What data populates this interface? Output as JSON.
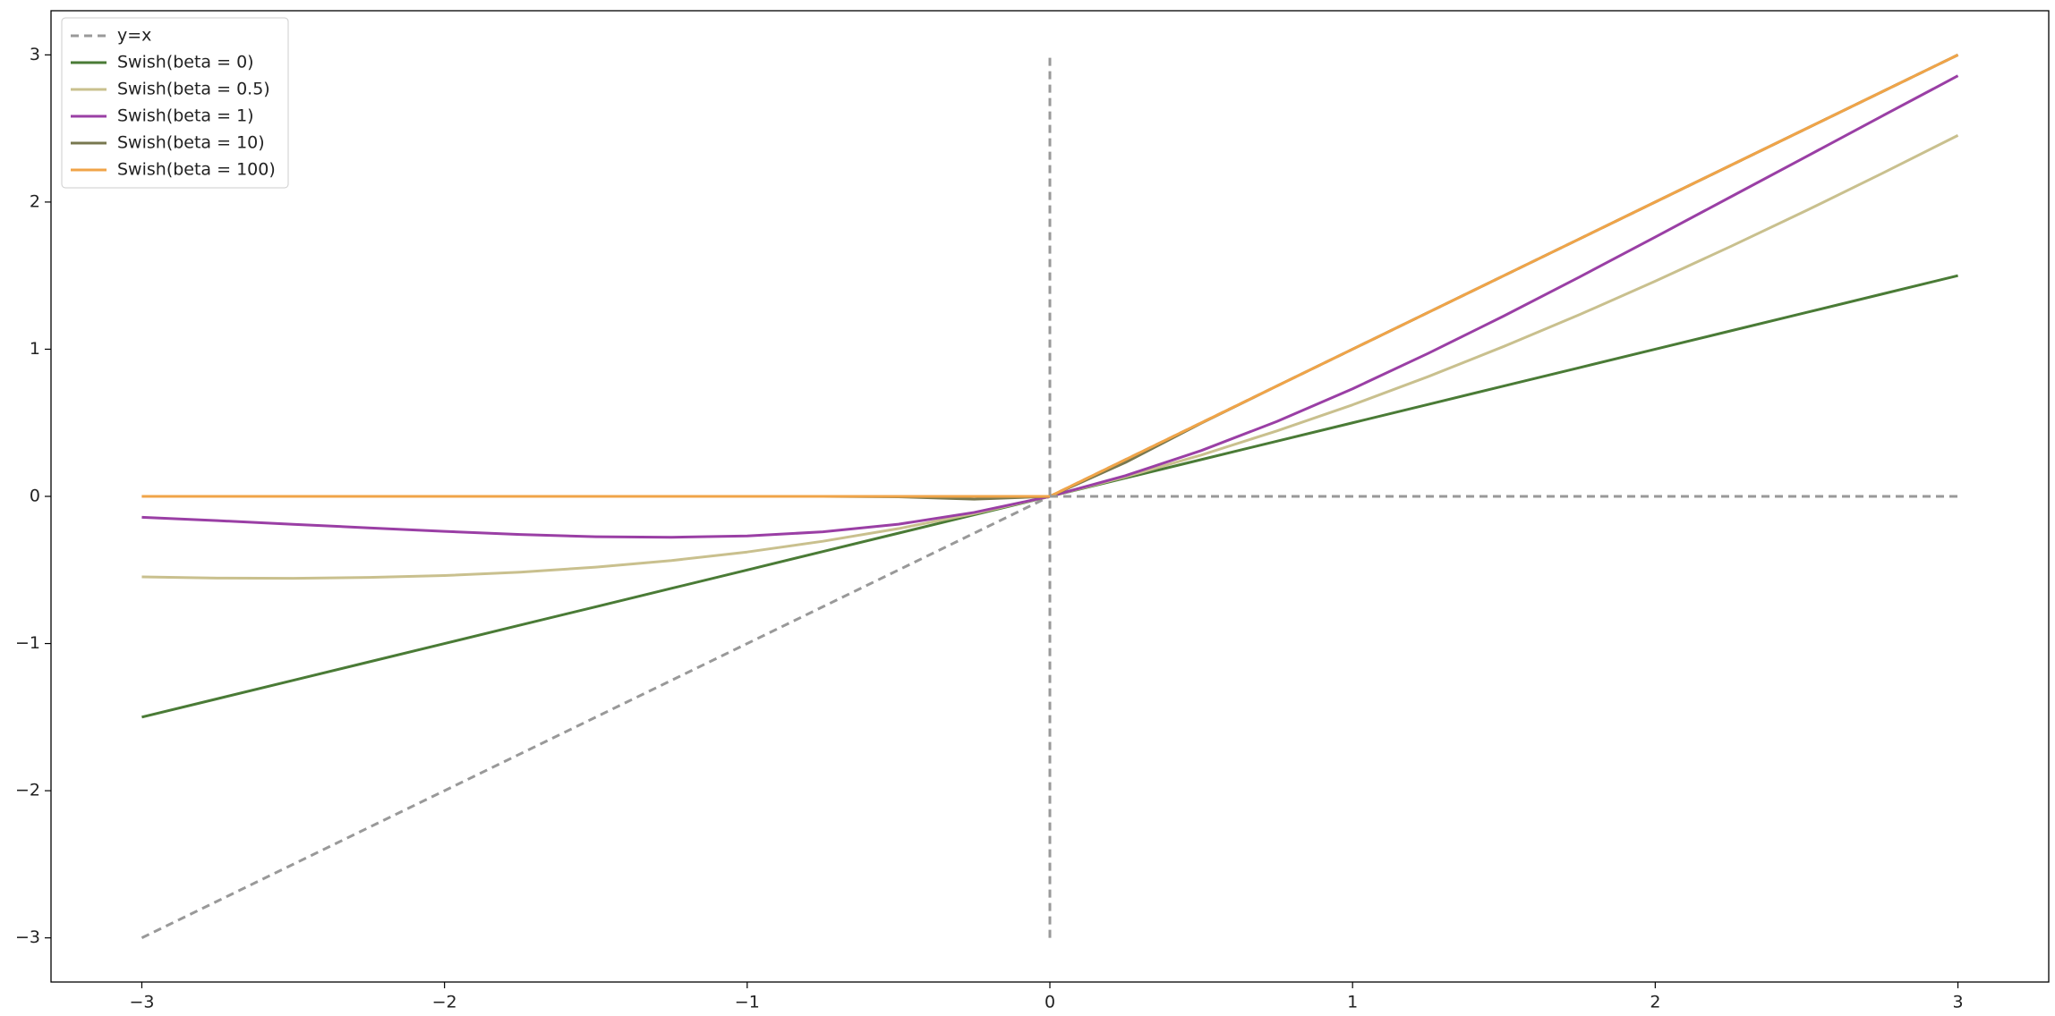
{
  "chart_data": {
    "type": "line",
    "x": [
      -3,
      -2.75,
      -2.5,
      -2.25,
      -2,
      -1.75,
      -1.5,
      -1.25,
      -1,
      -0.75,
      -0.5,
      -0.25,
      0,
      0.25,
      0.5,
      0.75,
      1,
      1.25,
      1.5,
      1.75,
      2,
      2.25,
      2.5,
      2.75,
      3
    ],
    "series": [
      {
        "name": "y=x",
        "color": "#999999",
        "dash": true,
        "in_legend": true,
        "values": [
          -3,
          -2.75,
          -2.5,
          -2.25,
          -2,
          -1.75,
          -1.5,
          -1.25,
          -1,
          -0.75,
          -0.5,
          -0.25,
          0,
          0.25,
          0.5,
          0.75,
          1,
          1.25,
          1.5,
          1.75,
          2,
          2.25,
          2.5,
          2.75,
          3
        ]
      },
      {
        "name": "Swish(beta = 0)",
        "color": "#4a7b36",
        "dash": false,
        "in_legend": true,
        "values": [
          -1.5,
          -1.375,
          -1.25,
          -1.125,
          -1,
          -0.875,
          -0.75,
          -0.625,
          -0.5,
          -0.375,
          -0.25,
          -0.125,
          0,
          0.125,
          0.25,
          0.375,
          0.5,
          0.625,
          0.75,
          0.875,
          1,
          1.125,
          1.25,
          1.375,
          1.5
        ]
      },
      {
        "name": "Swish(beta = 0.5)",
        "color": "#c9c08e",
        "dash": false,
        "in_legend": true,
        "values": [
          -0.547,
          -0.555,
          -0.557,
          -0.551,
          -0.538,
          -0.515,
          -0.481,
          -0.436,
          -0.378,
          -0.305,
          -0.219,
          -0.117,
          0,
          0.133,
          0.281,
          0.445,
          0.622,
          0.814,
          1.019,
          1.235,
          1.462,
          1.699,
          1.943,
          2.195,
          2.453
        ]
      },
      {
        "name": "Swish(beta = 1)",
        "color": "#9a3fa5",
        "dash": false,
        "in_legend": true,
        "values": [
          -0.142,
          -0.165,
          -0.19,
          -0.214,
          -0.238,
          -0.259,
          -0.274,
          -0.278,
          -0.269,
          -0.241,
          -0.189,
          -0.109,
          0,
          0.141,
          0.311,
          0.509,
          0.731,
          0.972,
          1.226,
          1.491,
          1.762,
          2.036,
          2.31,
          2.585,
          2.858
        ]
      },
      {
        "name": "Swish(beta = 10)",
        "color": "#78784f",
        "dash": false,
        "in_legend": true,
        "values": [
          0,
          0,
          0,
          0,
          0,
          0,
          0,
          0,
          0,
          0,
          -0.003,
          -0.019,
          0,
          0.231,
          0.497,
          0.75,
          1,
          1.25,
          1.5,
          1.75,
          2,
          2.25,
          2.5,
          2.75,
          3
        ]
      },
      {
        "name": "Swish(beta = 100)",
        "color": "#f0a448",
        "dash": false,
        "in_legend": true,
        "values": [
          0,
          0,
          0,
          0,
          0,
          0,
          0,
          0,
          0,
          0,
          0,
          0,
          0,
          0.25,
          0.5,
          0.75,
          1,
          1.25,
          1.5,
          1.75,
          2,
          2.25,
          2.5,
          2.75,
          3
        ]
      },
      {
        "color": "#999999",
        "dash": true,
        "in_legend": false,
        "x": [
          0,
          3
        ],
        "values": [
          0,
          0
        ]
      },
      {
        "color": "#999999",
        "dash": true,
        "in_legend": false,
        "x": [
          0,
          0
        ],
        "values": [
          -3,
          3
        ]
      }
    ],
    "xlim": [
      -3.3,
      3.3
    ],
    "ylim": [
      -3.3,
      3.3
    ],
    "xticks": [
      {
        "value": -3,
        "label": "−3"
      },
      {
        "value": -2,
        "label": "−2"
      },
      {
        "value": -1,
        "label": "−1"
      },
      0,
      1,
      2,
      3
    ],
    "yticks": [
      {
        "value": -3,
        "label": "−3"
      },
      {
        "value": -2,
        "label": "−2"
      },
      {
        "value": -1,
        "label": "−1"
      },
      0,
      1,
      2,
      3
    ],
    "grid": false,
    "legend": "upper left"
  }
}
